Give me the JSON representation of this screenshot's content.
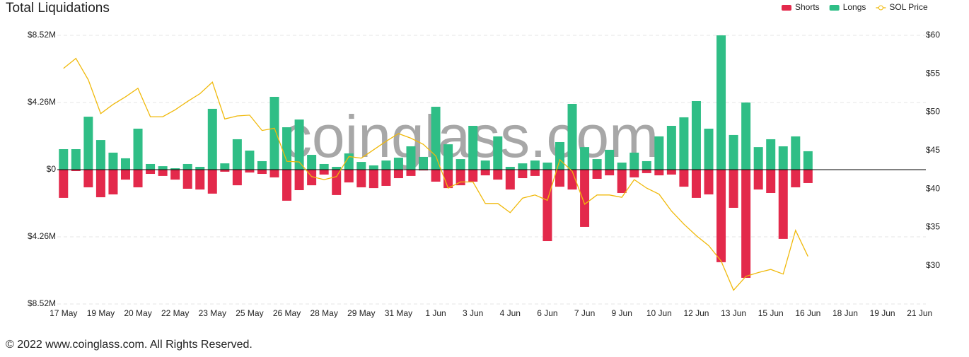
{
  "chart_data": {
    "type": "bar",
    "title": "Total Liquidations",
    "watermark": "coinglass.com",
    "footer": "© 2022 www.coinglass.com. All Rights Reserved.",
    "legend": "top-right",
    "grid": true,
    "categories": [
      "17 May",
      null,
      null,
      "19 May",
      null,
      null,
      "20 May",
      null,
      null,
      "22 May",
      null,
      null,
      "23 May",
      null,
      null,
      "25 May",
      null,
      null,
      "26 May",
      null,
      null,
      "28 May",
      null,
      null,
      "29 May",
      null,
      null,
      "31 May",
      null,
      null,
      "1 Jun",
      null,
      null,
      "3 Jun",
      null,
      null,
      "4 Jun",
      null,
      null,
      "6 Jun",
      null,
      null,
      "7 Jun",
      null,
      null,
      "9 Jun",
      null,
      null,
      "10 Jun",
      null,
      null,
      "12 Jun",
      null,
      null,
      "13 Jun",
      null,
      null,
      "15 Jun",
      null,
      null,
      "16 Jun",
      null,
      null,
      "18 Jun",
      null,
      null,
      "19 Jun",
      null,
      null,
      "21 Jun"
    ],
    "ylim": [
      -8.52,
      8.52
    ],
    "yticks": [
      {
        "value": -8.52,
        "label": "$8.52M"
      },
      {
        "value": -4.26,
        "label": "$4.26M"
      },
      {
        "value": 0,
        "label": "$0"
      },
      {
        "value": 4.26,
        "label": "$4.26M"
      },
      {
        "value": 8.52,
        "label": "$8.52M"
      }
    ],
    "y2lim": [
      25,
      60
    ],
    "y2ticks": [
      {
        "value": 30,
        "label": "$30"
      },
      {
        "value": 35,
        "label": "$35"
      },
      {
        "value": 40,
        "label": "$40"
      },
      {
        "value": 45,
        "label": "$45"
      },
      {
        "value": 50,
        "label": "$50"
      },
      {
        "value": 55,
        "label": "$55"
      },
      {
        "value": 60,
        "label": "$60"
      }
    ],
    "series": [
      {
        "name": "Shorts",
        "type": "bar",
        "color": "#e3294b",
        "values": [
          -1.79,
          -0.09,
          -1.12,
          -1.75,
          -1.57,
          -0.63,
          -1.12,
          -0.27,
          -0.4,
          -0.63,
          -1.21,
          -1.26,
          -1.52,
          -0.13,
          -0.99,
          -0.18,
          -0.27,
          -0.49,
          -1.97,
          -1.3,
          -0.99,
          -0.31,
          -1.61,
          -0.81,
          -1.12,
          -1.17,
          -1.03,
          -0.54,
          -0.4,
          -0.05,
          -0.76,
          -1.17,
          -0.99,
          -0.76,
          -0.36,
          -0.63,
          -1.26,
          -0.54,
          -0.4,
          -4.53,
          -1.08,
          -1.26,
          -3.63,
          -0.58,
          -0.36,
          -1.48,
          -0.49,
          -0.22,
          -0.36,
          -0.31,
          -1.08,
          -1.79,
          -1.57,
          -5.87,
          -2.42,
          -6.86,
          -1.26,
          -1.48,
          -4.39,
          -1.12,
          -0.85,
          null,
          null,
          null,
          null,
          null,
          null,
          null,
          null,
          null
        ]
      },
      {
        "name": "Longs",
        "type": "bar",
        "color": "#2fbe86",
        "values": [
          1.3,
          1.3,
          3.36,
          1.88,
          1.08,
          0.72,
          2.6,
          0.36,
          0.22,
          0.09,
          0.36,
          0.18,
          3.86,
          0.4,
          1.93,
          1.21,
          0.54,
          4.62,
          2.69,
          3.18,
          0.94,
          0.36,
          0.18,
          1.03,
          0.49,
          0.27,
          0.58,
          0.76,
          1.48,
          0.81,
          3.99,
          1.61,
          0.67,
          2.78,
          0.58,
          2.11,
          0.18,
          0.4,
          0.58,
          0.45,
          1.75,
          4.17,
          1.43,
          0.67,
          1.26,
          0.45,
          1.08,
          0.54,
          2.11,
          2.78,
          3.32,
          4.35,
          2.6,
          8.52,
          2.2,
          4.26,
          1.43,
          1.93,
          1.48,
          2.11,
          1.17,
          null,
          null,
          null,
          null,
          null,
          null,
          null,
          null,
          null
        ]
      },
      {
        "name": "SOL Price",
        "type": "line",
        "axis": "y2",
        "color": "#f0b90b",
        "values": [
          55.7,
          57.0,
          54.2,
          49.8,
          51.0,
          52.0,
          53.1,
          49.4,
          49.4,
          50.3,
          51.4,
          52.4,
          53.9,
          49.1,
          49.5,
          49.6,
          47.6,
          47.9,
          43.6,
          43.5,
          41.6,
          41.2,
          41.6,
          44.2,
          44.0,
          45.1,
          46.2,
          47.2,
          46.6,
          45.8,
          44.3,
          40.1,
          40.9,
          40.9,
          38.1,
          38.1,
          36.9,
          38.8,
          39.2,
          38.5,
          43.8,
          42.3,
          38.0,
          39.2,
          39.2,
          38.9,
          41.2,
          40.1,
          39.3,
          37.1,
          35.4,
          33.9,
          32.6,
          30.6,
          26.8,
          28.6,
          29.1,
          29.5,
          28.9,
          34.6,
          31.2,
          null,
          null,
          null,
          null,
          null,
          null,
          null,
          null,
          null
        ]
      }
    ]
  }
}
